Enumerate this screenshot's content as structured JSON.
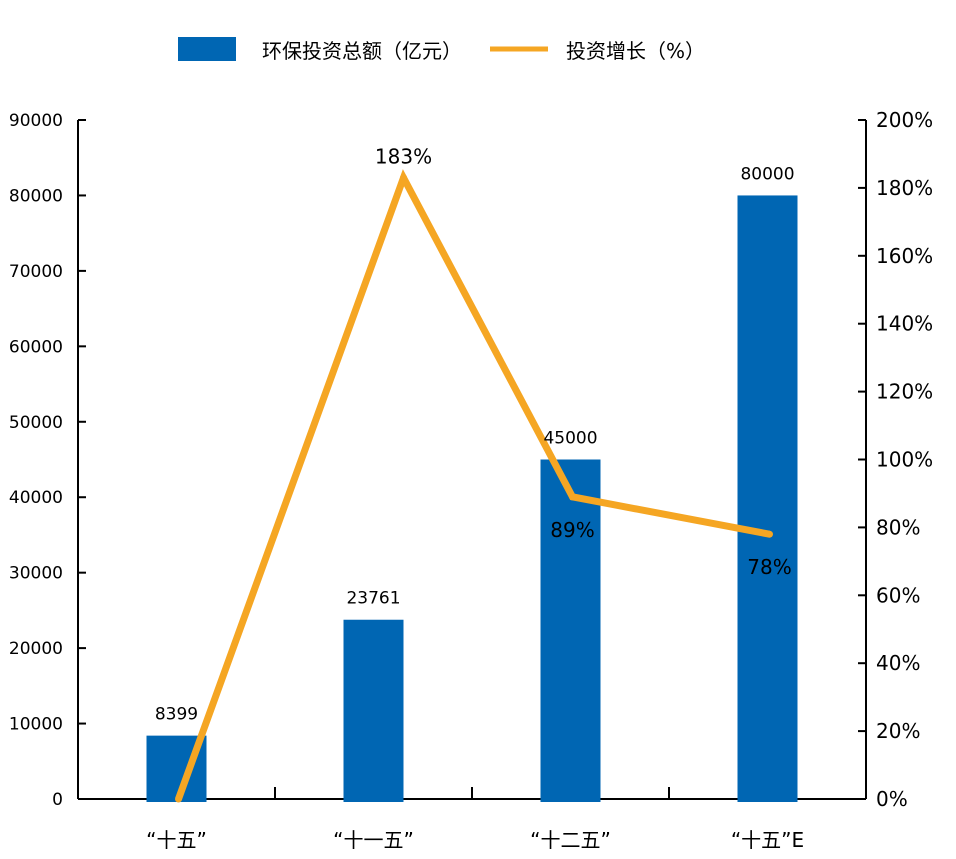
{
  "chart_data": {
    "type": "bar",
    "categories": [
      "“十五”",
      "“十一五”",
      "“十二五”",
      "“十五”E"
    ],
    "series": [
      {
        "name": "环保投资总额（亿元）",
        "type": "bar",
        "axis": "left",
        "color": "#0066b3",
        "values": [
          8399,
          23761,
          45000,
          80000
        ],
        "labels": [
          "8399",
          "23761",
          "45000",
          "80000"
        ]
      },
      {
        "name": "投资增长（%）",
        "type": "line",
        "axis": "right",
        "color": "#f5a623",
        "values": [
          0,
          183,
          89,
          78
        ],
        "labels": [
          "",
          "183%",
          "89%",
          "78%"
        ]
      }
    ],
    "left_axis": {
      "ylim": [
        0,
        90000
      ],
      "ticks": [
        0,
        10000,
        20000,
        30000,
        40000,
        50000,
        60000,
        70000,
        80000,
        90000
      ],
      "tick_labels": [
        "0",
        "10000",
        "20000",
        "30000",
        "40000",
        "50000",
        "60000",
        "70000",
        "80000",
        "90000"
      ]
    },
    "right_axis": {
      "ylim": [
        0,
        200
      ],
      "ticks": [
        0,
        20,
        40,
        60,
        80,
        100,
        120,
        140,
        160,
        180,
        200
      ],
      "tick_labels": [
        "0%",
        "20%",
        "40%",
        "60%",
        "80%",
        "100%",
        "120%",
        "140%",
        "160%",
        "180%",
        "200%"
      ]
    },
    "legend_placement": "top",
    "grid": false
  }
}
